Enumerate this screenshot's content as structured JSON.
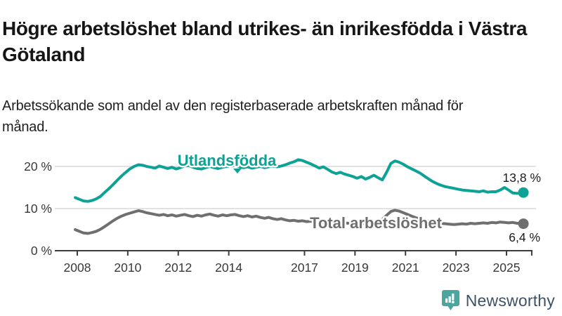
{
  "header": {
    "title": "Högre arbetslöshet bland utrikes- än inrikesfödda i Västra Götaland",
    "subtitle": "Arbetssökande som andel av den registerbaserade arbetskraften månad för månad."
  },
  "chart_data": {
    "type": "line",
    "title": "Högre arbetslöshet bland utrikes- än inrikesfödda i Västra Götaland",
    "subtitle": "Arbetssökande som andel av den registerbaserade arbetskraften månad för månad.",
    "xlabel": "",
    "ylabel": "",
    "xlim": [
      2007.7,
      2026.1
    ],
    "ylim": [
      0,
      23
    ],
    "grid": "horizontal",
    "legend_position": "inline-labels",
    "x_axis": {
      "ticks": [
        {
          "year": 2008,
          "label": "2008"
        },
        {
          "year": 2010,
          "label": "2010"
        },
        {
          "year": 2012,
          "label": "2012"
        },
        {
          "year": 2014,
          "label": "2014"
        },
        {
          "year": 2017,
          "label": "2017"
        },
        {
          "year": 2019,
          "label": "2019"
        },
        {
          "year": 2021,
          "label": "2021"
        },
        {
          "year": 2023,
          "label": "2023"
        },
        {
          "year": 2025,
          "label": "2025"
        },
        {
          "year": 2026,
          "label": ""
        }
      ]
    },
    "y_axis": {
      "ticks": [
        {
          "value": 0,
          "label": "0 %"
        },
        {
          "value": 10,
          "label": "10 %"
        },
        {
          "value": 20,
          "label": "20 %"
        }
      ]
    },
    "colors": {
      "grid": "#d8d8d8",
      "axis": "#3c3c3c",
      "tick_text": "#383838",
      "value_text": "#1a1a1a"
    },
    "series": [
      {
        "name": "Utlandsfödda",
        "color": "#0ca295",
        "end_label": "13,8 %",
        "end_value": 13.8,
        "points": [
          [
            2007.92,
            12.6
          ],
          [
            2008.08,
            12.2
          ],
          [
            2008.25,
            11.8
          ],
          [
            2008.42,
            11.7
          ],
          [
            2008.58,
            11.9
          ],
          [
            2008.75,
            12.3
          ],
          [
            2008.92,
            12.9
          ],
          [
            2009.08,
            13.8
          ],
          [
            2009.25,
            14.7
          ],
          [
            2009.42,
            15.7
          ],
          [
            2009.58,
            16.7
          ],
          [
            2009.75,
            17.7
          ],
          [
            2009.92,
            18.6
          ],
          [
            2010.08,
            19.4
          ],
          [
            2010.25,
            20.0
          ],
          [
            2010.42,
            20.4
          ],
          [
            2010.58,
            20.3
          ],
          [
            2010.75,
            20.0
          ],
          [
            2010.92,
            19.8
          ],
          [
            2011.08,
            19.6
          ],
          [
            2011.25,
            20.1
          ],
          [
            2011.42,
            19.8
          ],
          [
            2011.58,
            19.5
          ],
          [
            2011.75,
            19.8
          ],
          [
            2011.92,
            19.4
          ],
          [
            2012.08,
            19.7
          ],
          [
            2012.25,
            20.1
          ],
          [
            2012.42,
            20.2
          ],
          [
            2012.58,
            19.8
          ],
          [
            2012.75,
            19.5
          ],
          [
            2012.92,
            19.4
          ],
          [
            2013.08,
            19.7
          ],
          [
            2013.25,
            20.0
          ],
          [
            2013.42,
            19.7
          ],
          [
            2013.58,
            19.5
          ],
          [
            2013.75,
            19.8
          ],
          [
            2013.92,
            20.0
          ],
          [
            2014.08,
            20.1
          ],
          [
            2014.25,
            20.2
          ],
          [
            2014.42,
            19.9
          ],
          [
            2014.58,
            19.7
          ],
          [
            2014.75,
            19.9
          ],
          [
            2014.92,
            19.6
          ],
          [
            2015.08,
            19.8
          ],
          [
            2015.25,
            20.0
          ],
          [
            2015.42,
            19.7
          ],
          [
            2015.58,
            19.9
          ],
          [
            2015.75,
            20.1
          ],
          [
            2015.92,
            19.9
          ],
          [
            2016.08,
            20.1
          ],
          [
            2016.25,
            20.4
          ],
          [
            2016.42,
            20.8
          ],
          [
            2016.58,
            21.1
          ],
          [
            2016.75,
            21.6
          ],
          [
            2016.92,
            21.4
          ],
          [
            2017.08,
            21.0
          ],
          [
            2017.25,
            20.6
          ],
          [
            2017.42,
            20.1
          ],
          [
            2017.58,
            19.6
          ],
          [
            2017.75,
            19.9
          ],
          [
            2017.92,
            19.3
          ],
          [
            2018.08,
            18.7
          ],
          [
            2018.25,
            18.3
          ],
          [
            2018.42,
            18.6
          ],
          [
            2018.58,
            18.2
          ],
          [
            2018.75,
            17.9
          ],
          [
            2018.92,
            17.6
          ],
          [
            2019.08,
            17.2
          ],
          [
            2019.25,
            17.6
          ],
          [
            2019.42,
            17.0
          ],
          [
            2019.58,
            17.4
          ],
          [
            2019.75,
            17.9
          ],
          [
            2019.92,
            17.3
          ],
          [
            2020.08,
            16.8
          ],
          [
            2020.25,
            18.6
          ],
          [
            2020.42,
            20.7
          ],
          [
            2020.58,
            21.3
          ],
          [
            2020.75,
            21.0
          ],
          [
            2020.92,
            20.5
          ],
          [
            2021.08,
            19.9
          ],
          [
            2021.25,
            19.4
          ],
          [
            2021.42,
            18.9
          ],
          [
            2021.58,
            18.4
          ],
          [
            2021.75,
            17.7
          ],
          [
            2021.92,
            17.0
          ],
          [
            2022.08,
            16.4
          ],
          [
            2022.25,
            15.9
          ],
          [
            2022.42,
            15.5
          ],
          [
            2022.58,
            15.2
          ],
          [
            2022.75,
            15.0
          ],
          [
            2022.92,
            14.8
          ],
          [
            2023.08,
            14.6
          ],
          [
            2023.25,
            14.4
          ],
          [
            2023.42,
            14.3
          ],
          [
            2023.58,
            14.2
          ],
          [
            2023.75,
            14.1
          ],
          [
            2023.92,
            14.0
          ],
          [
            2024.08,
            14.2
          ],
          [
            2024.25,
            13.9
          ],
          [
            2024.42,
            14.0
          ],
          [
            2024.58,
            14.0
          ],
          [
            2024.75,
            14.4
          ],
          [
            2024.92,
            15.0
          ],
          [
            2025.08,
            14.4
          ],
          [
            2025.25,
            13.7
          ],
          [
            2025.42,
            13.6
          ],
          [
            2025.58,
            13.7
          ],
          [
            2025.67,
            13.8
          ]
        ]
      },
      {
        "name": "Total arbetslöshet",
        "color": "#6f6f6f",
        "end_label": "6,4 %",
        "end_value": 6.4,
        "points": [
          [
            2007.92,
            5.0
          ],
          [
            2008.08,
            4.6
          ],
          [
            2008.25,
            4.2
          ],
          [
            2008.42,
            4.1
          ],
          [
            2008.58,
            4.3
          ],
          [
            2008.75,
            4.6
          ],
          [
            2008.92,
            5.1
          ],
          [
            2009.08,
            5.7
          ],
          [
            2009.25,
            6.4
          ],
          [
            2009.42,
            7.1
          ],
          [
            2009.58,
            7.7
          ],
          [
            2009.75,
            8.2
          ],
          [
            2009.92,
            8.6
          ],
          [
            2010.08,
            8.9
          ],
          [
            2010.25,
            9.2
          ],
          [
            2010.42,
            9.5
          ],
          [
            2010.58,
            9.3
          ],
          [
            2010.75,
            9.0
          ],
          [
            2010.92,
            8.8
          ],
          [
            2011.08,
            8.6
          ],
          [
            2011.25,
            8.4
          ],
          [
            2011.42,
            8.6
          ],
          [
            2011.58,
            8.3
          ],
          [
            2011.75,
            8.5
          ],
          [
            2011.92,
            8.2
          ],
          [
            2012.08,
            8.4
          ],
          [
            2012.25,
            8.6
          ],
          [
            2012.42,
            8.3
          ],
          [
            2012.58,
            8.1
          ],
          [
            2012.75,
            8.4
          ],
          [
            2012.92,
            8.2
          ],
          [
            2013.08,
            8.5
          ],
          [
            2013.25,
            8.7
          ],
          [
            2013.42,
            8.4
          ],
          [
            2013.58,
            8.2
          ],
          [
            2013.75,
            8.5
          ],
          [
            2013.92,
            8.3
          ],
          [
            2014.08,
            8.5
          ],
          [
            2014.25,
            8.6
          ],
          [
            2014.42,
            8.3
          ],
          [
            2014.58,
            8.1
          ],
          [
            2014.75,
            8.3
          ],
          [
            2014.92,
            8.0
          ],
          [
            2015.08,
            8.2
          ],
          [
            2015.25,
            7.9
          ],
          [
            2015.42,
            7.7
          ],
          [
            2015.58,
            7.9
          ],
          [
            2015.75,
            7.6
          ],
          [
            2015.92,
            7.4
          ],
          [
            2016.08,
            7.6
          ],
          [
            2016.25,
            7.3
          ],
          [
            2016.42,
            7.1
          ],
          [
            2016.58,
            7.2
          ],
          [
            2016.75,
            7.0
          ],
          [
            2016.92,
            7.1
          ],
          [
            2017.08,
            6.9
          ],
          [
            2017.25,
            7.0
          ],
          [
            2017.42,
            6.8
          ],
          [
            2017.58,
            6.9
          ],
          [
            2017.75,
            6.7
          ],
          [
            2017.92,
            6.8
          ],
          [
            2018.08,
            6.6
          ],
          [
            2018.25,
            6.7
          ],
          [
            2018.42,
            6.5
          ],
          [
            2018.58,
            6.6
          ],
          [
            2018.75,
            6.5
          ],
          [
            2018.92,
            6.6
          ],
          [
            2019.08,
            6.4
          ],
          [
            2019.25,
            6.5
          ],
          [
            2019.42,
            6.4
          ],
          [
            2019.58,
            6.6
          ],
          [
            2019.75,
            6.8
          ],
          [
            2019.92,
            7.0
          ],
          [
            2020.08,
            7.4
          ],
          [
            2020.25,
            8.4
          ],
          [
            2020.42,
            9.3
          ],
          [
            2020.58,
            9.6
          ],
          [
            2020.75,
            9.4
          ],
          [
            2020.92,
            9.0
          ],
          [
            2021.08,
            8.6
          ],
          [
            2021.25,
            8.2
          ],
          [
            2021.42,
            7.8
          ],
          [
            2021.58,
            7.5
          ],
          [
            2021.75,
            7.2
          ],
          [
            2021.92,
            7.0
          ],
          [
            2022.08,
            6.8
          ],
          [
            2022.25,
            6.6
          ],
          [
            2022.42,
            6.5
          ],
          [
            2022.58,
            6.4
          ],
          [
            2022.75,
            6.3
          ],
          [
            2022.92,
            6.2
          ],
          [
            2023.08,
            6.3
          ],
          [
            2023.25,
            6.4
          ],
          [
            2023.42,
            6.3
          ],
          [
            2023.58,
            6.5
          ],
          [
            2023.75,
            6.4
          ],
          [
            2023.92,
            6.5
          ],
          [
            2024.08,
            6.6
          ],
          [
            2024.25,
            6.5
          ],
          [
            2024.42,
            6.7
          ],
          [
            2024.58,
            6.6
          ],
          [
            2024.75,
            6.8
          ],
          [
            2024.92,
            6.7
          ],
          [
            2025.08,
            6.6
          ],
          [
            2025.25,
            6.7
          ],
          [
            2025.42,
            6.5
          ],
          [
            2025.58,
            6.5
          ],
          [
            2025.67,
            6.4
          ]
        ]
      }
    ]
  },
  "footer": {
    "brand": "Newsworthy",
    "logo_color": "#4aa69f",
    "brand_text_color": "#3d5166"
  }
}
